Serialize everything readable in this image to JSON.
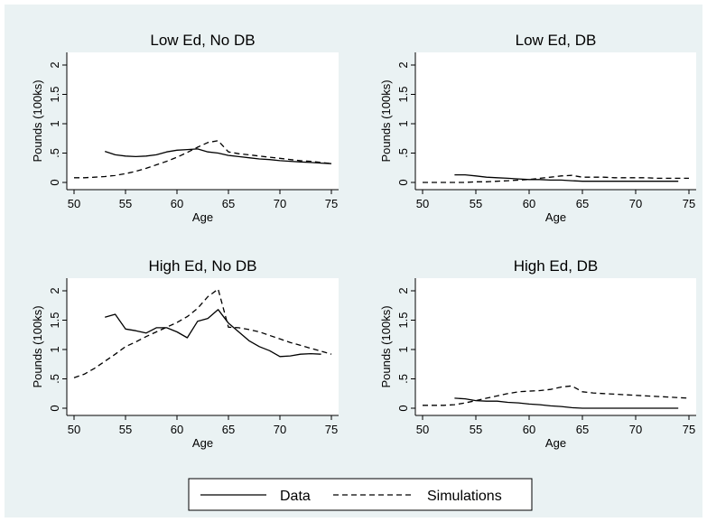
{
  "figure": {
    "legend": {
      "data_label": "Data",
      "sim_label": "Simulations"
    }
  },
  "chart_data": [
    {
      "type": "line",
      "title": "Low Ed, No DB",
      "xlabel": "Age",
      "ylabel": "Pounds (100ks)",
      "xlim": [
        50,
        75
      ],
      "ylim": [
        0,
        2
      ],
      "xticks": [
        "50",
        "55",
        "60",
        "65",
        "70",
        "75"
      ],
      "yticks": [
        "0",
        ".5",
        "1",
        "1.5",
        "2"
      ],
      "series": [
        {
          "name": "Data",
          "style": "solid",
          "x": [
            53,
            54,
            55,
            56,
            57,
            58,
            59,
            60,
            61,
            62,
            63,
            64,
            65,
            66,
            67,
            68,
            69,
            70,
            71,
            72,
            73,
            74,
            75
          ],
          "y": [
            0.53,
            0.47,
            0.45,
            0.44,
            0.45,
            0.47,
            0.52,
            0.55,
            0.56,
            0.57,
            0.52,
            0.5,
            0.46,
            0.44,
            0.42,
            0.4,
            0.39,
            0.37,
            0.36,
            0.35,
            0.34,
            0.33,
            0.32
          ]
        },
        {
          "name": "Simulations",
          "style": "dashed",
          "x": [
            50,
            51,
            52,
            53,
            54,
            55,
            56,
            57,
            58,
            59,
            60,
            61,
            62,
            63,
            64,
            65,
            66,
            67,
            68,
            69,
            70,
            71,
            72,
            73,
            74,
            75
          ],
          "y": [
            0.08,
            0.08,
            0.09,
            0.1,
            0.12,
            0.15,
            0.19,
            0.24,
            0.3,
            0.36,
            0.43,
            0.51,
            0.6,
            0.68,
            0.71,
            0.52,
            0.49,
            0.47,
            0.45,
            0.43,
            0.41,
            0.39,
            0.37,
            0.36,
            0.34,
            0.32
          ]
        }
      ]
    },
    {
      "type": "line",
      "title": "Low Ed, DB",
      "xlabel": "Age",
      "ylabel": "Pounds (100ks)",
      "xlim": [
        50,
        75
      ],
      "ylim": [
        0,
        2
      ],
      "xticks": [
        "50",
        "55",
        "60",
        "65",
        "70",
        "75"
      ],
      "yticks": [
        "0",
        ".5",
        "1",
        "1.5",
        "2"
      ],
      "series": [
        {
          "name": "Data",
          "style": "solid",
          "x": [
            53,
            54,
            55,
            56,
            57,
            58,
            59,
            60,
            61,
            62,
            63,
            64,
            65,
            66,
            67,
            68,
            69,
            70,
            71,
            72,
            73,
            74
          ],
          "y": [
            0.13,
            0.13,
            0.11,
            0.09,
            0.08,
            0.07,
            0.06,
            0.05,
            0.05,
            0.04,
            0.04,
            0.03,
            0.02,
            0.02,
            0.02,
            0.02,
            0.02,
            0.02,
            0.02,
            0.02,
            0.02,
            0.02
          ]
        },
        {
          "name": "Simulations",
          "style": "dashed",
          "x": [
            50,
            51,
            52,
            53,
            54,
            55,
            56,
            57,
            58,
            59,
            60,
            61,
            62,
            63,
            64,
            65,
            66,
            67,
            68,
            69,
            70,
            71,
            72,
            73,
            74,
            75
          ],
          "y": [
            0.0,
            0.0,
            0.0,
            0.0,
            0.0,
            0.01,
            0.01,
            0.02,
            0.03,
            0.04,
            0.05,
            0.07,
            0.09,
            0.11,
            0.12,
            0.09,
            0.09,
            0.09,
            0.08,
            0.08,
            0.08,
            0.08,
            0.07,
            0.07,
            0.07,
            0.07
          ]
        }
      ]
    },
    {
      "type": "line",
      "title": "High Ed, No DB",
      "xlabel": "Age",
      "ylabel": "Pounds (100ks)",
      "xlim": [
        50,
        75
      ],
      "ylim": [
        0,
        2
      ],
      "xticks": [
        "50",
        "55",
        "60",
        "65",
        "70",
        "75"
      ],
      "yticks": [
        "0",
        ".5",
        "1",
        "1.5",
        "2"
      ],
      "series": [
        {
          "name": "Data",
          "style": "solid",
          "x": [
            53,
            54,
            55,
            56,
            57,
            58,
            59,
            60,
            61,
            62,
            63,
            64,
            65,
            66,
            67,
            68,
            69,
            70,
            71,
            72,
            73,
            74
          ],
          "y": [
            1.55,
            1.6,
            1.35,
            1.32,
            1.28,
            1.37,
            1.37,
            1.3,
            1.2,
            1.48,
            1.53,
            1.68,
            1.45,
            1.3,
            1.15,
            1.05,
            0.98,
            0.88,
            0.89,
            0.92,
            0.93,
            0.92
          ]
        },
        {
          "name": "Simulations",
          "style": "dashed",
          "x": [
            50,
            51,
            52,
            53,
            54,
            55,
            56,
            57,
            58,
            59,
            60,
            61,
            62,
            63,
            64,
            65,
            66,
            67,
            68,
            69,
            70,
            71,
            72,
            73,
            74,
            75
          ],
          "y": [
            0.52,
            0.58,
            0.68,
            0.8,
            0.92,
            1.05,
            1.13,
            1.22,
            1.3,
            1.38,
            1.46,
            1.56,
            1.7,
            1.9,
            2.03,
            1.38,
            1.37,
            1.34,
            1.3,
            1.24,
            1.18,
            1.12,
            1.07,
            1.02,
            0.97,
            0.92
          ]
        }
      ]
    },
    {
      "type": "line",
      "title": "High Ed, DB",
      "xlabel": "Age",
      "ylabel": "Pounds (100ks)",
      "xlim": [
        50,
        75
      ],
      "ylim": [
        0,
        2
      ],
      "xticks": [
        "50",
        "55",
        "60",
        "65",
        "70",
        "75"
      ],
      "yticks": [
        "0",
        ".5",
        "1",
        "1.5",
        "2"
      ],
      "series": [
        {
          "name": "Data",
          "style": "solid",
          "x": [
            53,
            54,
            55,
            56,
            57,
            58,
            59,
            60,
            61,
            62,
            63,
            64,
            65,
            66,
            67,
            68,
            69,
            70,
            71,
            72,
            73,
            74
          ],
          "y": [
            0.17,
            0.16,
            0.13,
            0.12,
            0.12,
            0.1,
            0.09,
            0.07,
            0.06,
            0.04,
            0.03,
            0.01,
            0.0,
            0.0,
            0.0,
            0.0,
            0.0,
            0.0,
            0.0,
            0.0,
            0.0,
            0.0
          ]
        },
        {
          "name": "Simulations",
          "style": "dashed",
          "x": [
            50,
            51,
            52,
            53,
            54,
            55,
            56,
            57,
            58,
            59,
            60,
            61,
            62,
            63,
            64,
            65,
            66,
            67,
            68,
            69,
            70,
            71,
            72,
            73,
            74,
            75
          ],
          "y": [
            0.05,
            0.05,
            0.05,
            0.06,
            0.09,
            0.13,
            0.17,
            0.21,
            0.25,
            0.28,
            0.29,
            0.3,
            0.32,
            0.36,
            0.38,
            0.28,
            0.26,
            0.25,
            0.24,
            0.23,
            0.22,
            0.21,
            0.2,
            0.19,
            0.18,
            0.17
          ]
        }
      ]
    }
  ]
}
